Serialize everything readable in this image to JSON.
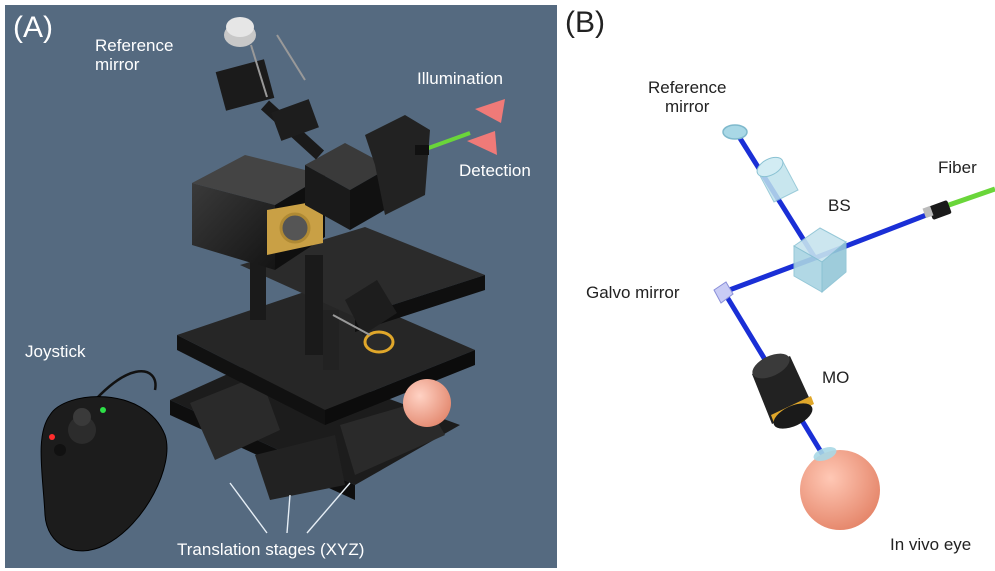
{
  "panel_a": {
    "tag": "(A)",
    "reference_mirror": "Reference\nmirror",
    "illumination": "Illumination",
    "detection": "Detection",
    "joystick": "Joystick",
    "translation_stages": "Translation stages (XYZ)"
  },
  "panel_b": {
    "tag": "(B)",
    "reference_mirror": "Reference\nmirror",
    "fiber": "Fiber",
    "bs": "BS",
    "galvo_mirror": "Galvo mirror",
    "mo": "MO",
    "in_vivo_eye": "In vivo eye"
  },
  "colors": {
    "panel_a_background": "#556a80",
    "beam_blue": "#1a2fd6",
    "fiber_green": "#6ad63a",
    "eye_skin": "#f2a48a",
    "arrow_red": "#f07a78",
    "optic_cyan": "#a9d8e6",
    "mo_gold": "#e0a72a"
  }
}
